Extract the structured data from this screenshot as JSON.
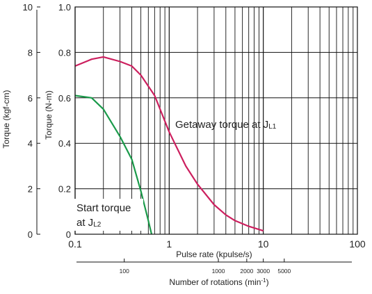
{
  "chart_data": {
    "type": "line",
    "xlabel": "Pulse rate (kpulse/s)",
    "x_scale": "log",
    "xlim": [
      0.1,
      100
    ],
    "x_ticks": [
      "0.1",
      "1",
      "10",
      "100"
    ],
    "ylabel": "Torque (N-m)",
    "ylim": [
      0,
      1.0
    ],
    "y_ticks": [
      "0",
      "0.2",
      "0.4",
      "0.6",
      "0.8",
      "1.0"
    ],
    "y2label": "Torque (kgf-cm)",
    "y2lim": [
      0,
      10
    ],
    "y2_ticks": [
      "0",
      "2",
      "4",
      "6",
      "8",
      "10"
    ],
    "x2label": "Number of rotations (min",
    "x2label_sup": "-1",
    "x2label_close": ")",
    "x2_ticks": [
      {
        "label": "100",
        "at": 0.333
      },
      {
        "label": "1000",
        "at": 3.33
      },
      {
        "label": "2000",
        "at": 6.67
      },
      {
        "label": "3000",
        "at": 10
      },
      {
        "label": "5000",
        "at": 16.7
      }
    ],
    "grid": true,
    "series": [
      {
        "name": "Getaway torque at JL1",
        "color": "#cc1f5e",
        "x": [
          0.1,
          0.15,
          0.2,
          0.3,
          0.4,
          0.5,
          0.7,
          1,
          1.5,
          2,
          3,
          4,
          5,
          7,
          10
        ],
        "y": [
          0.74,
          0.77,
          0.78,
          0.76,
          0.74,
          0.7,
          0.61,
          0.45,
          0.3,
          0.22,
          0.13,
          0.085,
          0.06,
          0.035,
          0.015
        ]
      },
      {
        "name": "Start torque at JL2",
        "color": "#1a9a4a",
        "x": [
          0.1,
          0.15,
          0.2,
          0.3,
          0.4,
          0.5,
          0.6,
          0.65
        ],
        "y": [
          0.61,
          0.6,
          0.55,
          0.43,
          0.33,
          0.19,
          0.06,
          0.0
        ]
      }
    ],
    "annotations": [
      {
        "text": "Getaway torque at J",
        "sub": "L1"
      },
      {
        "text": "Start torque",
        "line2": "at J",
        "sub": "L2"
      }
    ]
  }
}
